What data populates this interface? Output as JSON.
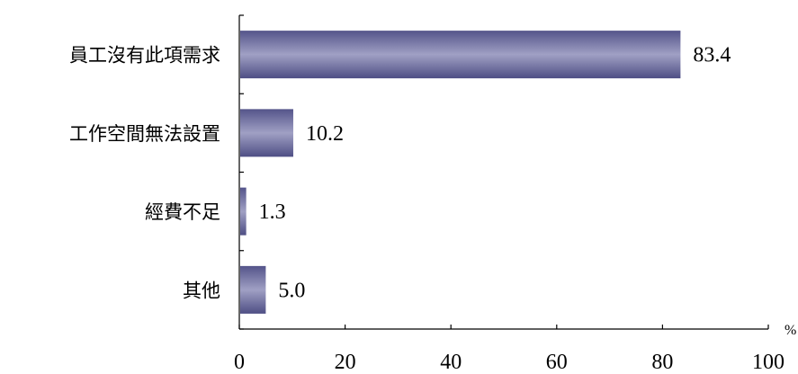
{
  "chart_data": {
    "type": "bar",
    "orientation": "horizontal",
    "categories": [
      "員工沒有此項需求",
      "工作空間無法設置",
      "經費不足",
      "其他"
    ],
    "values": [
      83.4,
      10.2,
      1.3,
      5.0
    ],
    "value_labels": [
      "83.4",
      "10.2",
      "1.3",
      "5.0"
    ],
    "title": "",
    "xlabel": "",
    "ylabel": "",
    "unit": "%",
    "xlim": [
      0,
      100
    ],
    "x_ticks": [
      0,
      20,
      40,
      60,
      80,
      100
    ],
    "grid": false,
    "legend": "none",
    "bar_color": "#5c5c8e",
    "bar_highlight_color": "#a3a3c6"
  }
}
